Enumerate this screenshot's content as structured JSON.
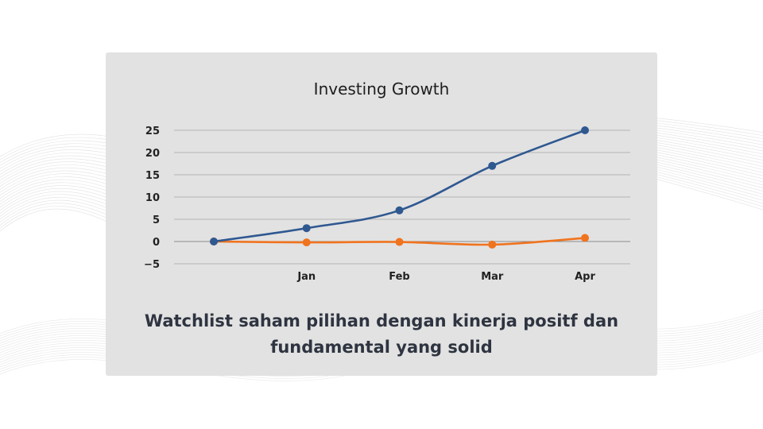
{
  "caption": "Watchlist saham pilihan dengan kinerja positf dan fundamental yang solid",
  "colors": {
    "card_background": "#e2e2e2",
    "series_blue": "#2f5891",
    "series_orange": "#f0731e",
    "caption_text": "#2e3440"
  },
  "chart_data": {
    "type": "line",
    "title": "Investing Growth",
    "xlabel": "",
    "ylabel": "",
    "categories": [
      "",
      "Jan",
      "Feb",
      "Mar",
      "Apr"
    ],
    "ylim": [
      -5,
      25
    ],
    "yticks": [
      25,
      20,
      15,
      10,
      5,
      0,
      -5
    ],
    "ytick_labels": [
      "25",
      "20",
      "15",
      "10",
      "5",
      "0",
      "−5"
    ],
    "grid": true,
    "legend": "none",
    "series": [
      {
        "color": "#2f5891",
        "values": [
          0,
          3,
          7,
          17,
          25
        ]
      },
      {
        "color": "#f0731e",
        "values": [
          0,
          -0.2,
          -0.1,
          -0.7,
          0.8
        ]
      }
    ]
  }
}
